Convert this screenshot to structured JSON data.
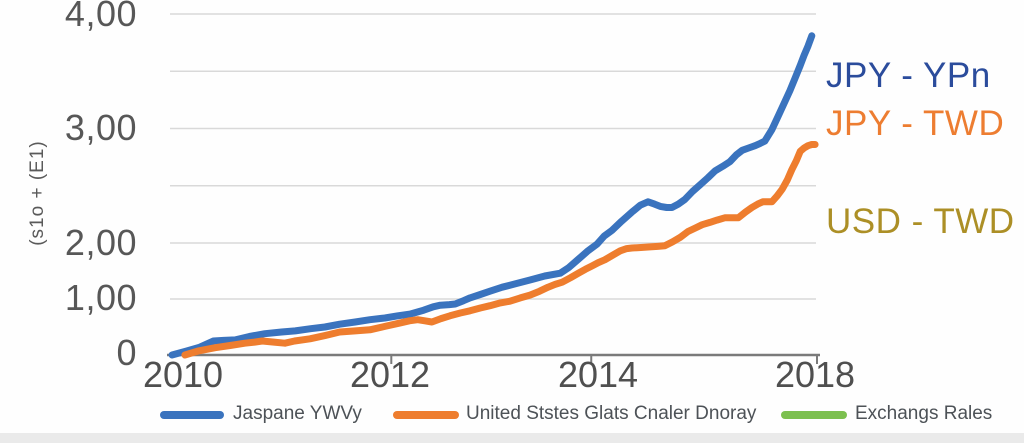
{
  "colors": {
    "grid": "#d9d9d9",
    "axis": "#7a7a7a",
    "y_label_text": "#575757",
    "x_label_text": "#4f4f4f",
    "legend_text": "#4d5257",
    "bottom_strip": "#eaeaea"
  },
  "chart_data": {
    "type": "line",
    "title": "",
    "y_axis": {
      "title": "(s1o + (E1)",
      "range": [
        0,
        4
      ],
      "tick_labels": [
        {
          "v": 4,
          "label": "4,00"
        },
        {
          "v": 3,
          "label": "3,00"
        },
        {
          "v": 2,
          "label": "2,00"
        },
        {
          "v": 1,
          "label": "1,00"
        },
        {
          "v": 0,
          "label": "0"
        }
      ],
      "grid_values": [
        1,
        2,
        2.5,
        3,
        3.5,
        4
      ],
      "note": "vertical scale in source image is nonlinear: values 0-2 are compressed, 2-4 expanded"
    },
    "x_axis": {
      "ticks": [
        {
          "label": "2010",
          "t": 0.017,
          "tick_mark": false
        },
        {
          "label": "2012",
          "t": 0.34,
          "tick_mark": true
        },
        {
          "label": "2014",
          "t": 0.65,
          "tick_mark": true
        },
        {
          "label": "2018",
          "t": 1.0,
          "tick_mark": true
        }
      ]
    },
    "summary_values": {
      "years": [
        2010,
        2012,
        2014,
        2018
      ],
      "JPY - YPn": [
        0.0,
        0.7,
        1.95,
        3.8
      ],
      "JPY - TWD": [
        0.0,
        0.55,
        1.6,
        2.86
      ]
    },
    "series": [
      {
        "name": "JPY - YPn",
        "legend_label": "Jaspane YWVy",
        "line_color": "#3a73be",
        "name_color": "#2b4c9c",
        "points": [
          [
            0.0,
            0.0
          ],
          [
            0.022,
            0.07
          ],
          [
            0.043,
            0.14
          ],
          [
            0.064,
            0.25
          ],
          [
            0.08,
            0.26
          ],
          [
            0.098,
            0.27
          ],
          [
            0.12,
            0.33
          ],
          [
            0.144,
            0.38
          ],
          [
            0.17,
            0.41
          ],
          [
            0.191,
            0.43
          ],
          [
            0.215,
            0.47
          ],
          [
            0.237,
            0.5
          ],
          [
            0.26,
            0.55
          ],
          [
            0.284,
            0.59
          ],
          [
            0.307,
            0.63
          ],
          [
            0.33,
            0.66
          ],
          [
            0.35,
            0.7
          ],
          [
            0.369,
            0.73
          ],
          [
            0.39,
            0.8
          ],
          [
            0.405,
            0.86
          ],
          [
            0.416,
            0.89
          ],
          [
            0.43,
            0.9
          ],
          [
            0.439,
            0.91
          ],
          [
            0.452,
            0.97
          ],
          [
            0.462,
            1.02
          ],
          [
            0.478,
            1.08
          ],
          [
            0.493,
            1.14
          ],
          [
            0.512,
            1.21
          ],
          [
            0.532,
            1.27
          ],
          [
            0.555,
            1.34
          ],
          [
            0.578,
            1.41
          ],
          [
            0.602,
            1.46
          ],
          [
            0.615,
            1.56
          ],
          [
            0.63,
            1.71
          ],
          [
            0.645,
            1.86
          ],
          [
            0.659,
            1.98
          ],
          [
            0.67,
            2.06
          ],
          [
            0.682,
            2.11
          ],
          [
            0.697,
            2.19
          ],
          [
            0.713,
            2.27
          ],
          [
            0.726,
            2.33
          ],
          [
            0.738,
            2.36
          ],
          [
            0.748,
            2.34
          ],
          [
            0.757,
            2.32
          ],
          [
            0.767,
            2.31
          ],
          [
            0.775,
            2.31
          ],
          [
            0.785,
            2.34
          ],
          [
            0.795,
            2.38
          ],
          [
            0.807,
            2.45
          ],
          [
            0.819,
            2.51
          ],
          [
            0.831,
            2.57
          ],
          [
            0.842,
            2.63
          ],
          [
            0.854,
            2.67
          ],
          [
            0.865,
            2.71
          ],
          [
            0.875,
            2.77
          ],
          [
            0.884,
            2.81
          ],
          [
            0.894,
            2.83
          ],
          [
            0.904,
            2.85
          ],
          [
            0.912,
            2.87
          ],
          [
            0.919,
            2.89
          ],
          [
            0.93,
            2.99
          ],
          [
            0.94,
            3.11
          ],
          [
            0.949,
            3.22
          ],
          [
            0.958,
            3.33
          ],
          [
            0.966,
            3.44
          ],
          [
            0.974,
            3.55
          ],
          [
            0.98,
            3.64
          ],
          [
            0.986,
            3.72
          ],
          [
            0.992,
            3.81
          ]
        ]
      },
      {
        "name": "JPY - TWD",
        "legend_label": "United Ststes Glats Cnaler Dnoray",
        "line_color": "#ee7d2e",
        "name_color": "#ed7d31",
        "points": [
          [
            0.02,
            0.0
          ],
          [
            0.04,
            0.07
          ],
          [
            0.067,
            0.13
          ],
          [
            0.09,
            0.17
          ],
          [
            0.113,
            0.21
          ],
          [
            0.128,
            0.23
          ],
          [
            0.14,
            0.25
          ],
          [
            0.158,
            0.23
          ],
          [
            0.175,
            0.21
          ],
          [
            0.19,
            0.25
          ],
          [
            0.214,
            0.29
          ],
          [
            0.238,
            0.35
          ],
          [
            0.26,
            0.41
          ],
          [
            0.284,
            0.43
          ],
          [
            0.307,
            0.45
          ],
          [
            0.33,
            0.51
          ],
          [
            0.353,
            0.57
          ],
          [
            0.368,
            0.61
          ],
          [
            0.381,
            0.63
          ],
          [
            0.392,
            0.61
          ],
          [
            0.403,
            0.59
          ],
          [
            0.417,
            0.65
          ],
          [
            0.431,
            0.7
          ],
          [
            0.447,
            0.75
          ],
          [
            0.462,
            0.79
          ],
          [
            0.478,
            0.84
          ],
          [
            0.493,
            0.88
          ],
          [
            0.509,
            0.93
          ],
          [
            0.524,
            0.96
          ],
          [
            0.54,
            1.02
          ],
          [
            0.555,
            1.07
          ],
          [
            0.57,
            1.14
          ],
          [
            0.583,
            1.21
          ],
          [
            0.594,
            1.26
          ],
          [
            0.605,
            1.3
          ],
          [
            0.618,
            1.38
          ],
          [
            0.63,
            1.46
          ],
          [
            0.641,
            1.53
          ],
          [
            0.651,
            1.59
          ],
          [
            0.661,
            1.65
          ],
          [
            0.671,
            1.7
          ],
          [
            0.683,
            1.78
          ],
          [
            0.695,
            1.86
          ],
          [
            0.705,
            1.9
          ],
          [
            0.713,
            1.91
          ],
          [
            0.727,
            1.92
          ],
          [
            0.741,
            1.93
          ],
          [
            0.753,
            1.94
          ],
          [
            0.764,
            1.95
          ],
          [
            0.776,
            2.01
          ],
          [
            0.788,
            2.05
          ],
          [
            0.8,
            2.1
          ],
          [
            0.811,
            2.13
          ],
          [
            0.822,
            2.16
          ],
          [
            0.834,
            2.18
          ],
          [
            0.845,
            2.2
          ],
          [
            0.857,
            2.22
          ],
          [
            0.868,
            2.22
          ],
          [
            0.878,
            2.22
          ],
          [
            0.889,
            2.27
          ],
          [
            0.899,
            2.31
          ],
          [
            0.908,
            2.34
          ],
          [
            0.916,
            2.36
          ],
          [
            0.923,
            2.36
          ],
          [
            0.93,
            2.36
          ],
          [
            0.938,
            2.41
          ],
          [
            0.946,
            2.47
          ],
          [
            0.954,
            2.55
          ],
          [
            0.961,
            2.64
          ],
          [
            0.968,
            2.72
          ],
          [
            0.974,
            2.8
          ],
          [
            0.98,
            2.83
          ],
          [
            0.986,
            2.85
          ],
          [
            0.992,
            2.86
          ],
          [
            0.997,
            2.86
          ]
        ]
      },
      {
        "name": "USD - TWD",
        "legend_label": "Exchangs Rales",
        "line_color": "#7cc04f",
        "name_color": "#ac8f26",
        "points": []
      }
    ]
  }
}
